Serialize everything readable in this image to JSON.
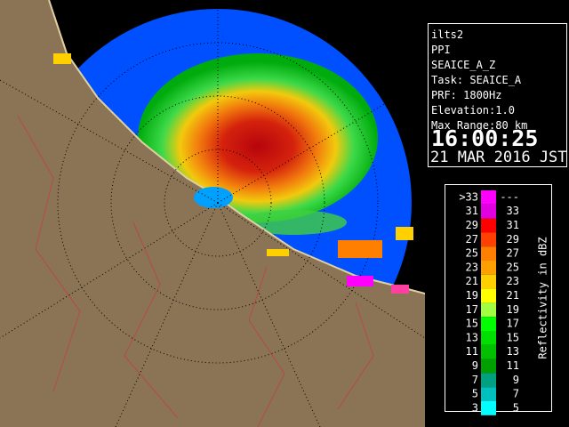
{
  "station": "ilts2",
  "mode": "PPI",
  "product": "SEAICE_A_Z",
  "task": "Task: SEAICE_A",
  "prf": "PRF: 1800Hz",
  "elevation": "Elevation:1.0",
  "max_range": "Max Range:80 km",
  "time": "16:00:25",
  "date": "21 MAR 2016 JST",
  "legend": {
    "title": "Reflectivity in dBZ",
    "rows": [
      {
        "label": ">33",
        "upper": "---",
        "color": "#ff00ff"
      },
      {
        "label": "31",
        "upper": "33",
        "color": "#e000e0"
      },
      {
        "label": "29",
        "upper": "31",
        "color": "#ff0000"
      },
      {
        "label": "27",
        "upper": "29",
        "color": "#ff4000"
      },
      {
        "label": "25",
        "upper": "27",
        "color": "#ff8000"
      },
      {
        "label": "23",
        "upper": "25",
        "color": "#ffa000"
      },
      {
        "label": "21",
        "upper": "23",
        "color": "#ffd000"
      },
      {
        "label": "19",
        "upper": "21",
        "color": "#ffff00"
      },
      {
        "label": "17",
        "upper": "19",
        "color": "#a0ff40"
      },
      {
        "label": "15",
        "upper": "17",
        "color": "#00ff00"
      },
      {
        "label": "13",
        "upper": "15",
        "color": "#00e000"
      },
      {
        "label": "11",
        "upper": "13",
        "color": "#00c000"
      },
      {
        "label": "9",
        "upper": "11",
        "color": "#00a000"
      },
      {
        "label": "7",
        "upper": "9",
        "color": "#00a080"
      },
      {
        "label": "5",
        "upper": "7",
        "color": "#00c0c0"
      },
      {
        "label": "3",
        "upper": "5",
        "color": "#00ffff"
      }
    ]
  }
}
